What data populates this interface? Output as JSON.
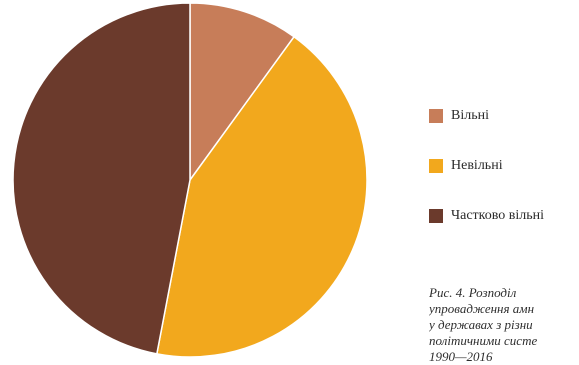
{
  "chart_data": {
    "type": "pie",
    "title": "",
    "categories": [
      "Вільні",
      "Невільні",
      "Частково вільні"
    ],
    "values": [
      10,
      43,
      47
    ],
    "colors": [
      "#c77d59",
      "#f2a81d",
      "#6b3a2c"
    ],
    "legend_position": "right"
  },
  "legend": {
    "items": [
      {
        "label": "Вільні",
        "color": "#c77d59"
      },
      {
        "label": "Невільні",
        "color": "#f2a81d"
      },
      {
        "label": "Частково вільні",
        "color": "#6b3a2c"
      }
    ]
  },
  "caption": {
    "lines": [
      "Рис. 4.  Розподіл",
      "упровадження амн",
      "у державах з різни",
      "політичними систе",
      "1990—2016"
    ]
  }
}
